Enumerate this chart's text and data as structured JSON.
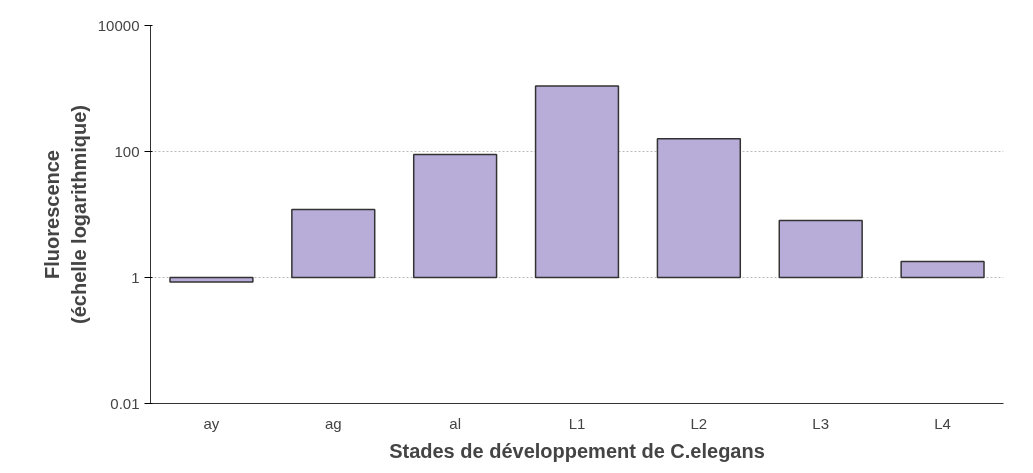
{
  "chart_data": {
    "type": "bar",
    "xlabel": "Stades de développement de C.elegans",
    "ylabel": "Fluorescence\n(échelle logarithmique)",
    "categories": [
      "ay",
      "ag",
      "al",
      "L1",
      "L2",
      "L3",
      "L4"
    ],
    "base": [
      1,
      1,
      1,
      1,
      1,
      1,
      1
    ],
    "values": [
      -0.15,
      11,
      89,
      1099,
      159,
      7,
      0.8
    ],
    "color": "#b8acd9",
    "log": true,
    "ylim": [
      0.01,
      10000
    ],
    "yticks": [
      0.01,
      1,
      100,
      10000
    ],
    "grid": "y"
  }
}
